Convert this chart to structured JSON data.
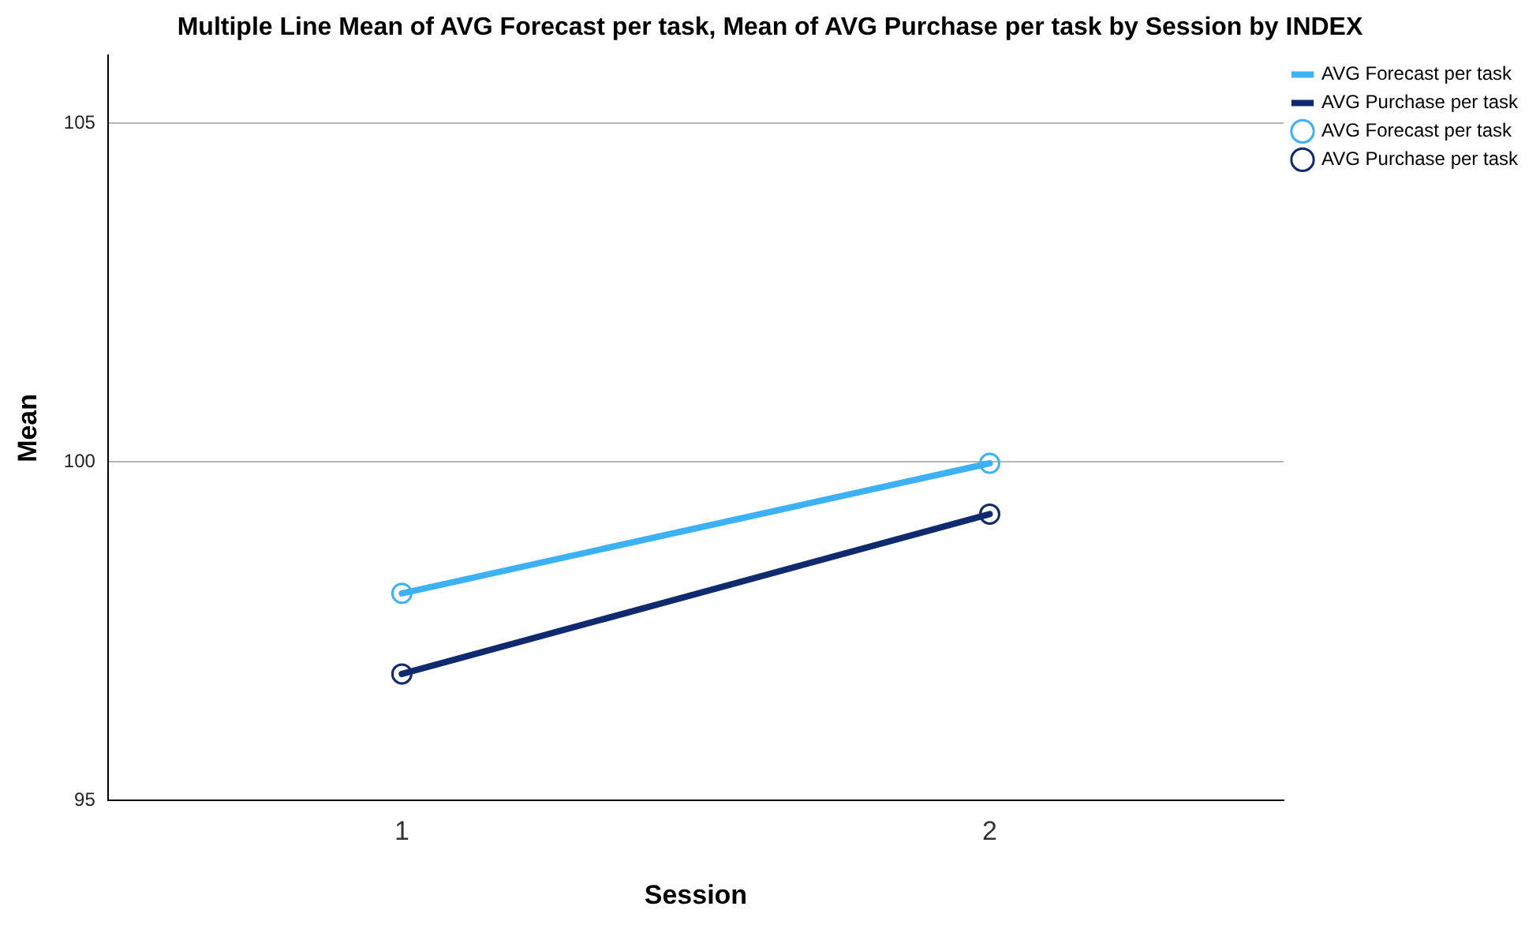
{
  "chart_data": {
    "type": "line",
    "title": "Multiple Line Mean of AVG Forecast per task, Mean of AVG Purchase per task by Session by INDEX",
    "xlabel": "Session",
    "ylabel": "Mean",
    "categories": [
      "1",
      "2"
    ],
    "series": [
      {
        "name": "AVG Forecast per task",
        "color": "#3db1f5",
        "values": [
          98.06,
          99.98
        ]
      },
      {
        "name": "AVG Purchase per task",
        "color": "#0f2a6e",
        "values": [
          96.87,
          99.23
        ]
      }
    ],
    "ylim": [
      95,
      106
    ],
    "yticks": [
      95,
      100,
      105
    ],
    "grid": "y",
    "legend": "top right",
    "marker": "circle",
    "line_style": "solid"
  }
}
